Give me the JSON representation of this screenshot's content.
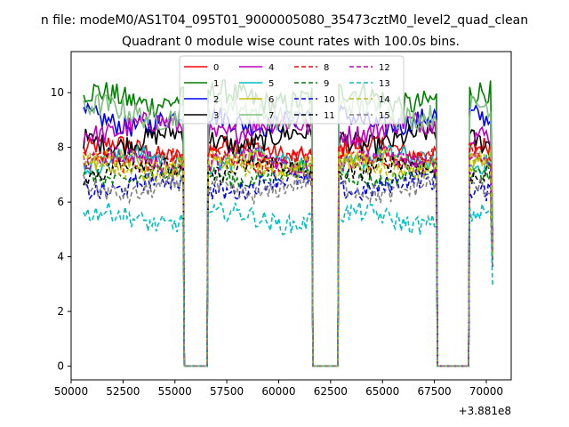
{
  "chart_data": {
    "type": "line",
    "suptitle": "n file: modeM0/AS1T04_095T01_9000005080_35473cztM0_level2_quad_clean",
    "title": "Quadrant 0 module wise count rates with 100.0s bins.",
    "xlabel": "",
    "ylabel": "",
    "x_offset_text": "+3.881e8",
    "xlim": [
      50000,
      71200
    ],
    "ylim": [
      -0.5,
      11.5
    ],
    "x_ticks": [
      50000,
      52500,
      55000,
      57500,
      60000,
      62500,
      65000,
      67500,
      70000
    ],
    "x_tick_labels": [
      "50000",
      "52500",
      "55000",
      "57500",
      "60000",
      "62500",
      "65000",
      "67500",
      "70000"
    ],
    "y_ticks": [
      0,
      2,
      4,
      6,
      8,
      10
    ],
    "y_tick_labels": [
      "0",
      "2",
      "4",
      "6",
      "8",
      "10"
    ],
    "segments": [
      {
        "start": 50600,
        "end": 55400
      },
      {
        "start": 56600,
        "end": 61600
      },
      {
        "start": 62900,
        "end": 67600
      },
      {
        "start": 69200,
        "end": 70200
      }
    ],
    "gaps": [
      {
        "start": 55400,
        "end": 56600
      },
      {
        "start": 61600,
        "end": 62900
      },
      {
        "start": 67600,
        "end": 69200
      }
    ],
    "bin_s": 100,
    "final_x": 70300,
    "legend_position": "upper center",
    "series": [
      {
        "name": "0",
        "color": "#ff0000",
        "dash": "solid",
        "level": 7.9,
        "noise": 0.35
      },
      {
        "name": "1",
        "color": "#008000",
        "dash": "solid",
        "level": 9.8,
        "noise": 0.45
      },
      {
        "name": "2",
        "color": "#0000ff",
        "dash": "solid",
        "level": 9.0,
        "noise": 0.4
      },
      {
        "name": "3",
        "color": "#000000",
        "dash": "solid",
        "level": 8.3,
        "noise": 0.4
      },
      {
        "name": "4",
        "color": "#bf00bf",
        "dash": "solid",
        "level": 8.7,
        "noise": 0.4
      },
      {
        "name": "5",
        "color": "#00bfbf",
        "dash": "solid",
        "level": 7.5,
        "noise": 0.35
      },
      {
        "name": "6",
        "color": "#bfbf00",
        "dash": "solid",
        "level": 7.4,
        "noise": 0.35
      },
      {
        "name": "7",
        "color": "#7fbf7f",
        "dash": "solid",
        "level": 9.3,
        "noise": 0.45
      },
      {
        "name": "8",
        "color": "#ff0000",
        "dash": "dashed",
        "level": 7.6,
        "noise": 0.35
      },
      {
        "name": "9",
        "color": "#008000",
        "dash": "dashed",
        "level": 7.0,
        "noise": 0.3
      },
      {
        "name": "10",
        "color": "#0000ff",
        "dash": "dashed",
        "level": 6.6,
        "noise": 0.35
      },
      {
        "name": "11",
        "color": "#000000",
        "dash": "dashed",
        "level": 7.2,
        "noise": 0.35
      },
      {
        "name": "12",
        "color": "#bf00bf",
        "dash": "dashed",
        "level": 7.5,
        "noise": 0.35
      },
      {
        "name": "13",
        "color": "#00bfbf",
        "dash": "dashed",
        "level": 5.4,
        "noise": 0.35
      },
      {
        "name": "14",
        "color": "#bfbf00",
        "dash": "dashed",
        "level": 7.3,
        "noise": 0.35
      },
      {
        "name": "15",
        "color": "#7f7f7f",
        "dash": "dashed",
        "level": 6.5,
        "noise": 0.35
      }
    ]
  }
}
